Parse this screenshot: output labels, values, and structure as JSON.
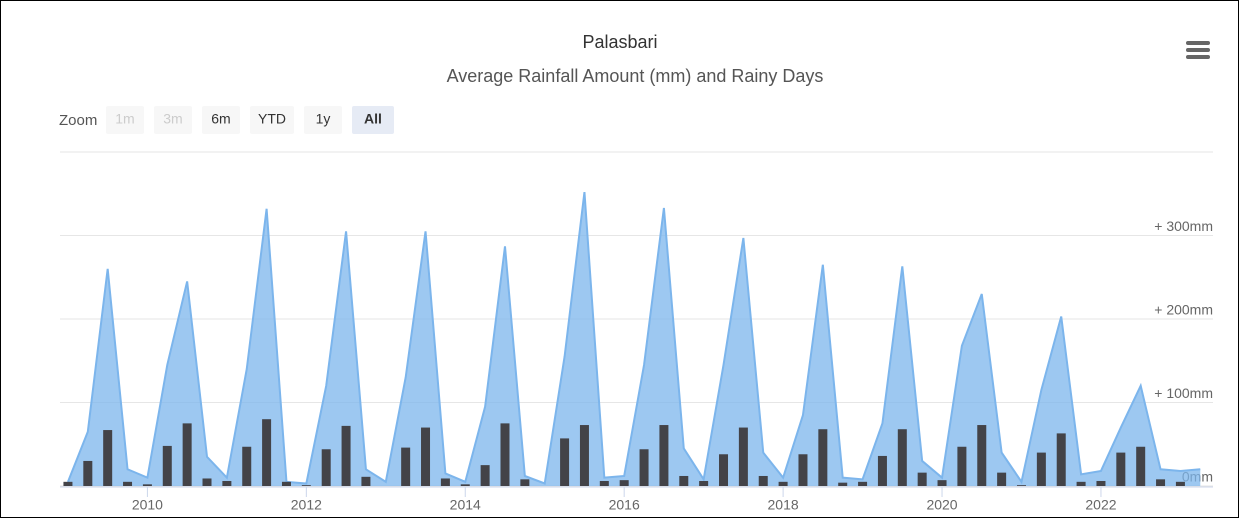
{
  "chart_data": {
    "type": "area-bar",
    "title": "Palasbari",
    "subtitle": "Average Rainfall Amount (mm) and Rainy Days",
    "zoom": {
      "label": "Zoom",
      "buttons": [
        "1m",
        "3m",
        "6m",
        "YTD",
        "1y",
        "All"
      ],
      "disabled": [
        "1m",
        "3m"
      ],
      "selected": "All"
    },
    "x": [
      2009,
      2009.25,
      2009.5,
      2009.75,
      2010,
      2010.25,
      2010.5,
      2010.75,
      2011,
      2011.25,
      2011.5,
      2011.75,
      2012,
      2012.25,
      2012.5,
      2012.75,
      2013,
      2013.25,
      2013.5,
      2013.75,
      2014,
      2014.25,
      2014.5,
      2014.75,
      2015,
      2015.25,
      2015.5,
      2015.75,
      2016,
      2016.25,
      2016.5,
      2016.75,
      2017,
      2017.25,
      2017.5,
      2017.75,
      2018,
      2018.25,
      2018.5,
      2018.75,
      2019,
      2019.25,
      2019.5,
      2019.75,
      2020,
      2020.25,
      2020.5,
      2020.75,
      2021,
      2021.25,
      2021.5,
      2021.75,
      2022,
      2022.25,
      2022.5,
      2022.75,
      2023,
      2023.25
    ],
    "series": [
      {
        "kind": "area",
        "color": "#7cb5ec",
        "values": [
          5,
          65,
          260,
          20,
          10,
          145,
          245,
          35,
          10,
          140,
          332,
          5,
          3,
          120,
          305,
          20,
          5,
          130,
          305,
          15,
          5,
          95,
          287,
          12,
          3,
          155,
          352,
          10,
          12,
          145,
          333,
          45,
          8,
          145,
          297,
          40,
          10,
          85,
          265,
          10,
          8,
          75,
          263,
          30,
          10,
          168,
          230,
          40,
          5,
          115,
          203,
          14,
          18,
          70,
          120,
          20,
          18,
          20
        ]
      },
      {
        "kind": "bar",
        "color": "#434348",
        "values": [
          5,
          30,
          67,
          5,
          2,
          48,
          75,
          9,
          6,
          47,
          80,
          5,
          1,
          44,
          72,
          11,
          0,
          46,
          70,
          9,
          2,
          25,
          75,
          8,
          0,
          57,
          73,
          6,
          7,
          44,
          73,
          12,
          6,
          38,
          70,
          12,
          5,
          38,
          68,
          4,
          5,
          36,
          68,
          16,
          7,
          47,
          73,
          16,
          1,
          40,
          63,
          5,
          6,
          40,
          47,
          8,
          5,
          null
        ]
      }
    ],
    "xlim": [
      2008.9,
      2023.41
    ],
    "xticks": [
      2010,
      2012,
      2014,
      2016,
      2018,
      2020,
      2022
    ],
    "ylim": [
      0,
      400
    ],
    "yticks": [
      {
        "value": 0,
        "label": "0mm"
      },
      {
        "value": 100,
        "label": "+ 100mm"
      },
      {
        "value": 200,
        "label": "+ 200mm"
      },
      {
        "value": 300,
        "label": "+ 300mm"
      }
    ],
    "grid": true
  }
}
